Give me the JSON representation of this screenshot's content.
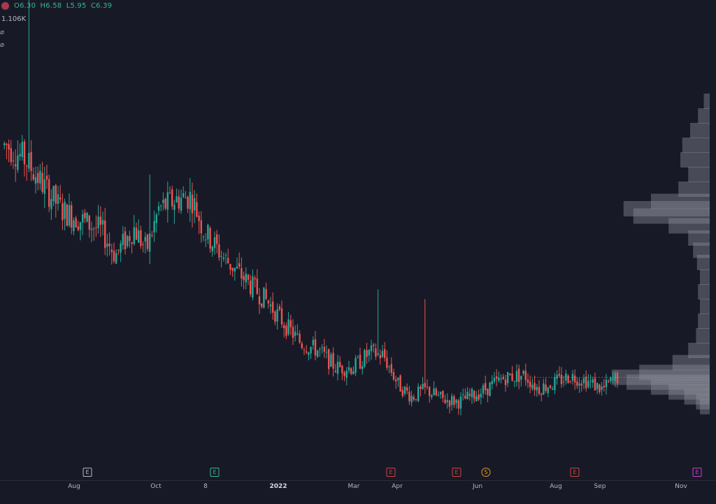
{
  "header": {
    "open": "O6.30",
    "high": "H6.58",
    "low": "L5.95",
    "close": "C6.39",
    "volume_label": "1.106K"
  },
  "colors": {
    "background": "#171a26",
    "up": "#26a69a",
    "down": "#ef5350",
    "volume_profile": "#8c909c"
  },
  "x_axis": {
    "labels": [
      {
        "text": "Aug",
        "bold": false
      },
      {
        "text": "Oct",
        "bold": false
      },
      {
        "text": "8",
        "bold": false
      },
      {
        "text": "2022",
        "bold": true
      },
      {
        "text": "Mar",
        "bold": false
      },
      {
        "text": "Apr",
        "bold": false
      },
      {
        "text": "Jun",
        "bold": false
      },
      {
        "text": "Aug",
        "bold": false
      },
      {
        "text": "Sep",
        "bold": false
      },
      {
        "text": "Nov",
        "bold": false
      }
    ]
  },
  "events": [
    {
      "label": "E",
      "style": "gray"
    },
    {
      "label": "E",
      "style": "green"
    },
    {
      "label": "E",
      "style": "red"
    },
    {
      "label": "E",
      "style": "red"
    },
    {
      "label": "S",
      "style": "split"
    },
    {
      "label": "E",
      "style": "red"
    },
    {
      "label": "E",
      "style": "purple"
    }
  ],
  "chart_data": {
    "type": "candlestick",
    "x_unit": "date",
    "y_axis_visible": false,
    "price_path": [
      {
        "date": "2021-06-10",
        "price": 6.6
      },
      {
        "date": "2021-06-25",
        "price": 6.3
      },
      {
        "date": "2021-07-10",
        "price": 5.75
      },
      {
        "date": "2021-07-25",
        "price": 5.25
      },
      {
        "date": "2021-08-10",
        "price": 5.05
      },
      {
        "date": "2021-08-25",
        "price": 4.85
      },
      {
        "date": "2021-09-05",
        "price": 4.35
      },
      {
        "date": "2021-09-20",
        "price": 4.9
      },
      {
        "date": "2021-09-30",
        "price": 4.45
      },
      {
        "date": "2021-10-10",
        "price": 5.3
      },
      {
        "date": "2021-10-25",
        "price": 5.5
      },
      {
        "date": "2021-11-05",
        "price": 5.55
      },
      {
        "date": "2021-11-15",
        "price": 4.85
      },
      {
        "date": "2021-12-01",
        "price": 4.3
      },
      {
        "date": "2021-12-20",
        "price": 3.8
      },
      {
        "date": "2022-01-05",
        "price": 3.4
      },
      {
        "date": "2022-01-20",
        "price": 2.9
      },
      {
        "date": "2022-02-01",
        "price": 2.55
      },
      {
        "date": "2022-02-15",
        "price": 2.4
      },
      {
        "date": "2022-03-01",
        "price": 2.05
      },
      {
        "date": "2022-03-15",
        "price": 2.05
      },
      {
        "date": "2022-03-28",
        "price": 2.35
      },
      {
        "date": "2022-04-08",
        "price": 2.3
      },
      {
        "date": "2022-04-20",
        "price": 1.7
      },
      {
        "date": "2022-05-01",
        "price": 1.45
      },
      {
        "date": "2022-05-12",
        "price": 1.6
      },
      {
        "date": "2022-05-25",
        "price": 1.4
      },
      {
        "date": "2022-06-08",
        "price": 1.35
      },
      {
        "date": "2022-06-25",
        "price": 1.55
      },
      {
        "date": "2022-07-15",
        "price": 1.85
      },
      {
        "date": "2022-07-30",
        "price": 1.9
      },
      {
        "date": "2022-08-10",
        "price": 1.62
      },
      {
        "date": "2022-08-22",
        "price": 1.72
      },
      {
        "date": "2022-09-05",
        "price": 1.88
      },
      {
        "date": "2022-09-18",
        "price": 1.78
      },
      {
        "date": "2022-10-01",
        "price": 1.6
      },
      {
        "date": "2022-10-12",
        "price": 1.85
      }
    ],
    "spikes": [
      {
        "date": "2021-06-28",
        "high": 10.2
      },
      {
        "date": "2021-10-02",
        "high": 6.0
      },
      {
        "date": "2022-04-04",
        "high": 3.65
      },
      {
        "date": "2022-05-12",
        "high": 3.45
      }
    ],
    "volume_profile": [
      {
        "price": 7.5,
        "volume": 0.06
      },
      {
        "price": 7.2,
        "volume": 0.12
      },
      {
        "price": 6.9,
        "volume": 0.2
      },
      {
        "price": 6.6,
        "volume": 0.28
      },
      {
        "price": 6.3,
        "volume": 0.3
      },
      {
        "price": 6.0,
        "volume": 0.22
      },
      {
        "price": 5.7,
        "volume": 0.32
      },
      {
        "price": 5.45,
        "volume": 0.6
      },
      {
        "price": 5.3,
        "volume": 0.88
      },
      {
        "price": 5.15,
        "volume": 0.78
      },
      {
        "price": 4.95,
        "volume": 0.42
      },
      {
        "price": 4.7,
        "volume": 0.22
      },
      {
        "price": 4.45,
        "volume": 0.17
      },
      {
        "price": 4.2,
        "volume": 0.13
      },
      {
        "price": 3.9,
        "volume": 0.1
      },
      {
        "price": 3.6,
        "volume": 0.12
      },
      {
        "price": 3.3,
        "volume": 0.1
      },
      {
        "price": 3.0,
        "volume": 0.12
      },
      {
        "price": 2.7,
        "volume": 0.14
      },
      {
        "price": 2.4,
        "volume": 0.22
      },
      {
        "price": 2.15,
        "volume": 0.38
      },
      {
        "price": 1.95,
        "volume": 0.72
      },
      {
        "price": 1.85,
        "volume": 1.0
      },
      {
        "price": 1.75,
        "volume": 0.85
      },
      {
        "price": 1.65,
        "volume": 0.6
      },
      {
        "price": 1.55,
        "volume": 0.42
      },
      {
        "price": 1.45,
        "volume": 0.26
      },
      {
        "price": 1.35,
        "volume": 0.14
      },
      {
        "price": 1.25,
        "volume": 0.1
      }
    ]
  }
}
